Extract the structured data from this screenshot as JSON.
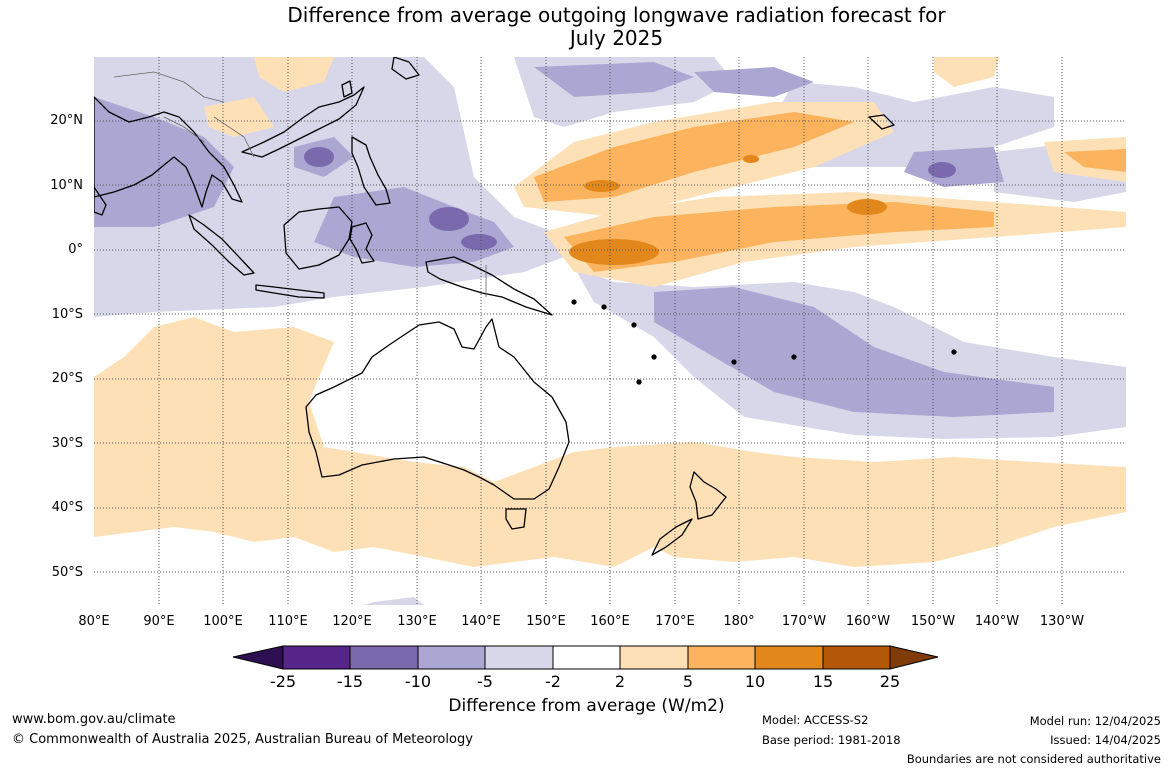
{
  "title": {
    "line1": "Difference from average outgoing longwave radiation forecast for",
    "line2": "July 2025"
  },
  "map": {
    "lat_labels": [
      "20°N",
      "10°N",
      "0°",
      "10°S",
      "20°S",
      "30°S",
      "40°S",
      "50°S"
    ],
    "lon_labels": [
      "80°E",
      "90°E",
      "100°E",
      "110°E",
      "120°E",
      "130°E",
      "140°E",
      "150°E",
      "160°E",
      "170°E",
      "180°",
      "170°W",
      "160°W",
      "150°W",
      "140°W",
      "130°W"
    ],
    "colors": {
      "below_25": "#2d0f52",
      "m25_m15": "#56268a",
      "m15_m10": "#7a6aad",
      "m10_m5": "#aca6d2",
      "m5_m2": "#d8d7ea",
      "m2_2": "#ffffff",
      "p2_p5": "#fde0b6",
      "p5_p10": "#fbb35e",
      "p10_p15": "#e2871b",
      "p15_p25": "#b35806",
      "above_25": "#7f3b08",
      "land": "#000000"
    }
  },
  "colorbar": {
    "labels": [
      "-25",
      "-15",
      "-10",
      "-5",
      "-2",
      "2",
      "5",
      "10",
      "15",
      "25"
    ],
    "title": "Difference from average (W/m2)"
  },
  "footer": {
    "website": "www.bom.gov.au/climate",
    "copyright": "© Commonwealth of Australia 2025, Australian Bureau of Meteorology",
    "model": "Model: ACCESS-S2",
    "base_period": "Base period: 1981-2018",
    "model_run": "Model run: 12/04/2025",
    "issued": "Issued: 14/04/2025",
    "disclaimer": "Boundaries are not considered authoritative"
  }
}
